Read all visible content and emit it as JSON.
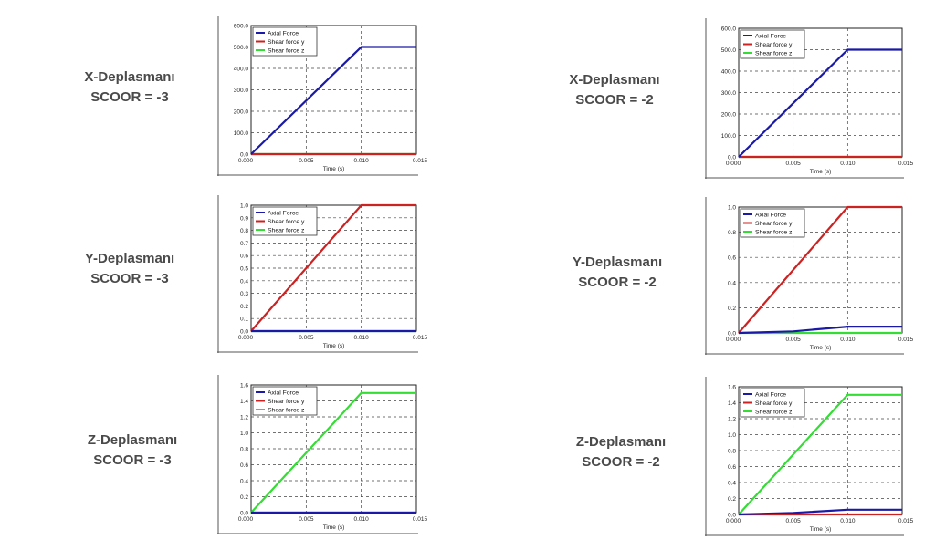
{
  "legend": [
    "Axial Force",
    "Shear force y",
    "Shear force z"
  ],
  "series_colors": [
    "#1a1aa6",
    "#cc2222",
    "#33dd33"
  ],
  "axis": {
    "xlabel": "Time (s)",
    "xticks": [
      "0.000",
      "0.005",
      "0.010",
      "0.015"
    ]
  },
  "rows": [
    {
      "left": {
        "title": "X-Deplasmanı",
        "scoor": "SCOOR = -3"
      },
      "right": {
        "title": "X-Deplasmanı",
        "scoor": "SCOOR = -2"
      }
    },
    {
      "left": {
        "title": "Y-Deplasmanı",
        "scoor": "SCOOR = -3"
      },
      "right": {
        "title": "Y-Deplasmanı",
        "scoor": "SCOOR = -2"
      }
    },
    {
      "left": {
        "title": "Z-Deplasmanı",
        "scoor": "SCOOR = -3"
      },
      "right": {
        "title": "Z-Deplasmanı",
        "scoor": "SCOOR = -2"
      }
    }
  ],
  "chart_data": [
    {
      "type": "line",
      "xlabel": "Time (s)",
      "xlim": [
        0,
        0.015
      ],
      "ylim": [
        0,
        600
      ],
      "yticks": [
        "0.0",
        "100.0",
        "200.0",
        "300.0",
        "400.0",
        "500.0",
        "600.0"
      ],
      "grid": true,
      "legend_position": "top-left",
      "series": [
        {
          "name": "Axial Force",
          "x": [
            0,
            0.01,
            0.015
          ],
          "values": [
            0,
            500,
            500
          ]
        },
        {
          "name": "Shear force y",
          "x": [
            0,
            0.01,
            0.015
          ],
          "values": [
            0,
            0,
            0
          ]
        },
        {
          "name": "Shear force z",
          "x": [
            0,
            0.01,
            0.015
          ],
          "values": [
            0,
            0,
            0
          ]
        }
      ]
    },
    {
      "type": "line",
      "xlabel": "Time (s)",
      "xlim": [
        0,
        0.015
      ],
      "ylim": [
        0,
        600
      ],
      "yticks": [
        "0.0",
        "100.0",
        "200.0",
        "300.0",
        "400.0",
        "500.0",
        "600.0"
      ],
      "grid": true,
      "legend_position": "top-left",
      "series": [
        {
          "name": "Axial Force",
          "x": [
            0,
            0.01,
            0.015
          ],
          "values": [
            0,
            500,
            500
          ]
        },
        {
          "name": "Shear force y",
          "x": [
            0,
            0.01,
            0.015
          ],
          "values": [
            0,
            0,
            0
          ]
        },
        {
          "name": "Shear force z",
          "x": [
            0,
            0.01,
            0.015
          ],
          "values": [
            0,
            0,
            0
          ]
        }
      ]
    },
    {
      "type": "line",
      "xlabel": "Time (s)",
      "xlim": [
        0,
        0.015
      ],
      "ylim": [
        0,
        1.0
      ],
      "yticks": [
        "0.0",
        "0.1",
        "0.2",
        "0.3",
        "0.4",
        "0.5",
        "0.6",
        "0.7",
        "0.8",
        "0.9",
        "1.0"
      ],
      "grid": true,
      "legend_position": "top-left",
      "series": [
        {
          "name": "Axial Force",
          "x": [
            0,
            0.01,
            0.015
          ],
          "values": [
            0,
            0,
            0
          ]
        },
        {
          "name": "Shear force y",
          "x": [
            0,
            0.01,
            0.015
          ],
          "values": [
            0,
            1.0,
            1.0
          ]
        },
        {
          "name": "Shear force z",
          "x": [
            0,
            0.01,
            0.015
          ],
          "values": [
            0,
            0,
            0
          ]
        }
      ]
    },
    {
      "type": "line",
      "xlabel": "Time (s)",
      "xlim": [
        0,
        0.015
      ],
      "ylim": [
        0,
        1.0
      ],
      "yticks": [
        "0.0",
        "0.2",
        "0.4",
        "0.6",
        "0.8",
        "1.0"
      ],
      "grid": true,
      "legend_position": "top-left",
      "series": [
        {
          "name": "Axial Force",
          "x": [
            0,
            0.005,
            0.01,
            0.015
          ],
          "values": [
            0,
            0.012,
            0.05,
            0.05
          ]
        },
        {
          "name": "Shear force y",
          "x": [
            0,
            0.01,
            0.015
          ],
          "values": [
            0,
            1.0,
            1.0
          ]
        },
        {
          "name": "Shear force z",
          "x": [
            0,
            0.01,
            0.015
          ],
          "values": [
            0,
            0,
            0
          ]
        }
      ]
    },
    {
      "type": "line",
      "xlabel": "Time (s)",
      "xlim": [
        0,
        0.015
      ],
      "ylim": [
        0,
        1.6
      ],
      "yticks": [
        "0.0",
        "0.2",
        "0.4",
        "0.6",
        "0.8",
        "1.0",
        "1.2",
        "1.4",
        "1.6"
      ],
      "grid": true,
      "legend_position": "top-left",
      "series": [
        {
          "name": "Axial Force",
          "x": [
            0,
            0.01,
            0.015
          ],
          "values": [
            0,
            0,
            0
          ]
        },
        {
          "name": "Shear force y",
          "x": [
            0,
            0.01,
            0.015
          ],
          "values": [
            0,
            0,
            0
          ]
        },
        {
          "name": "Shear force z",
          "x": [
            0,
            0.01,
            0.015
          ],
          "values": [
            0,
            1.5,
            1.5
          ]
        }
      ]
    },
    {
      "type": "line",
      "xlabel": "Time (s)",
      "xlim": [
        0,
        0.015
      ],
      "ylim": [
        0,
        1.6
      ],
      "yticks": [
        "0.0",
        "0.2",
        "0.4",
        "0.6",
        "0.8",
        "1.0",
        "1.2",
        "1.4",
        "1.6"
      ],
      "grid": true,
      "legend_position": "top-left",
      "series": [
        {
          "name": "Axial Force",
          "x": [
            0,
            0.005,
            0.01,
            0.015
          ],
          "values": [
            0,
            0.02,
            0.06,
            0.06
          ]
        },
        {
          "name": "Shear force y",
          "x": [
            0,
            0.01,
            0.015
          ],
          "values": [
            0,
            0,
            0
          ]
        },
        {
          "name": "Shear force z",
          "x": [
            0,
            0.01,
            0.015
          ],
          "values": [
            0,
            1.5,
            1.5
          ]
        }
      ]
    }
  ]
}
